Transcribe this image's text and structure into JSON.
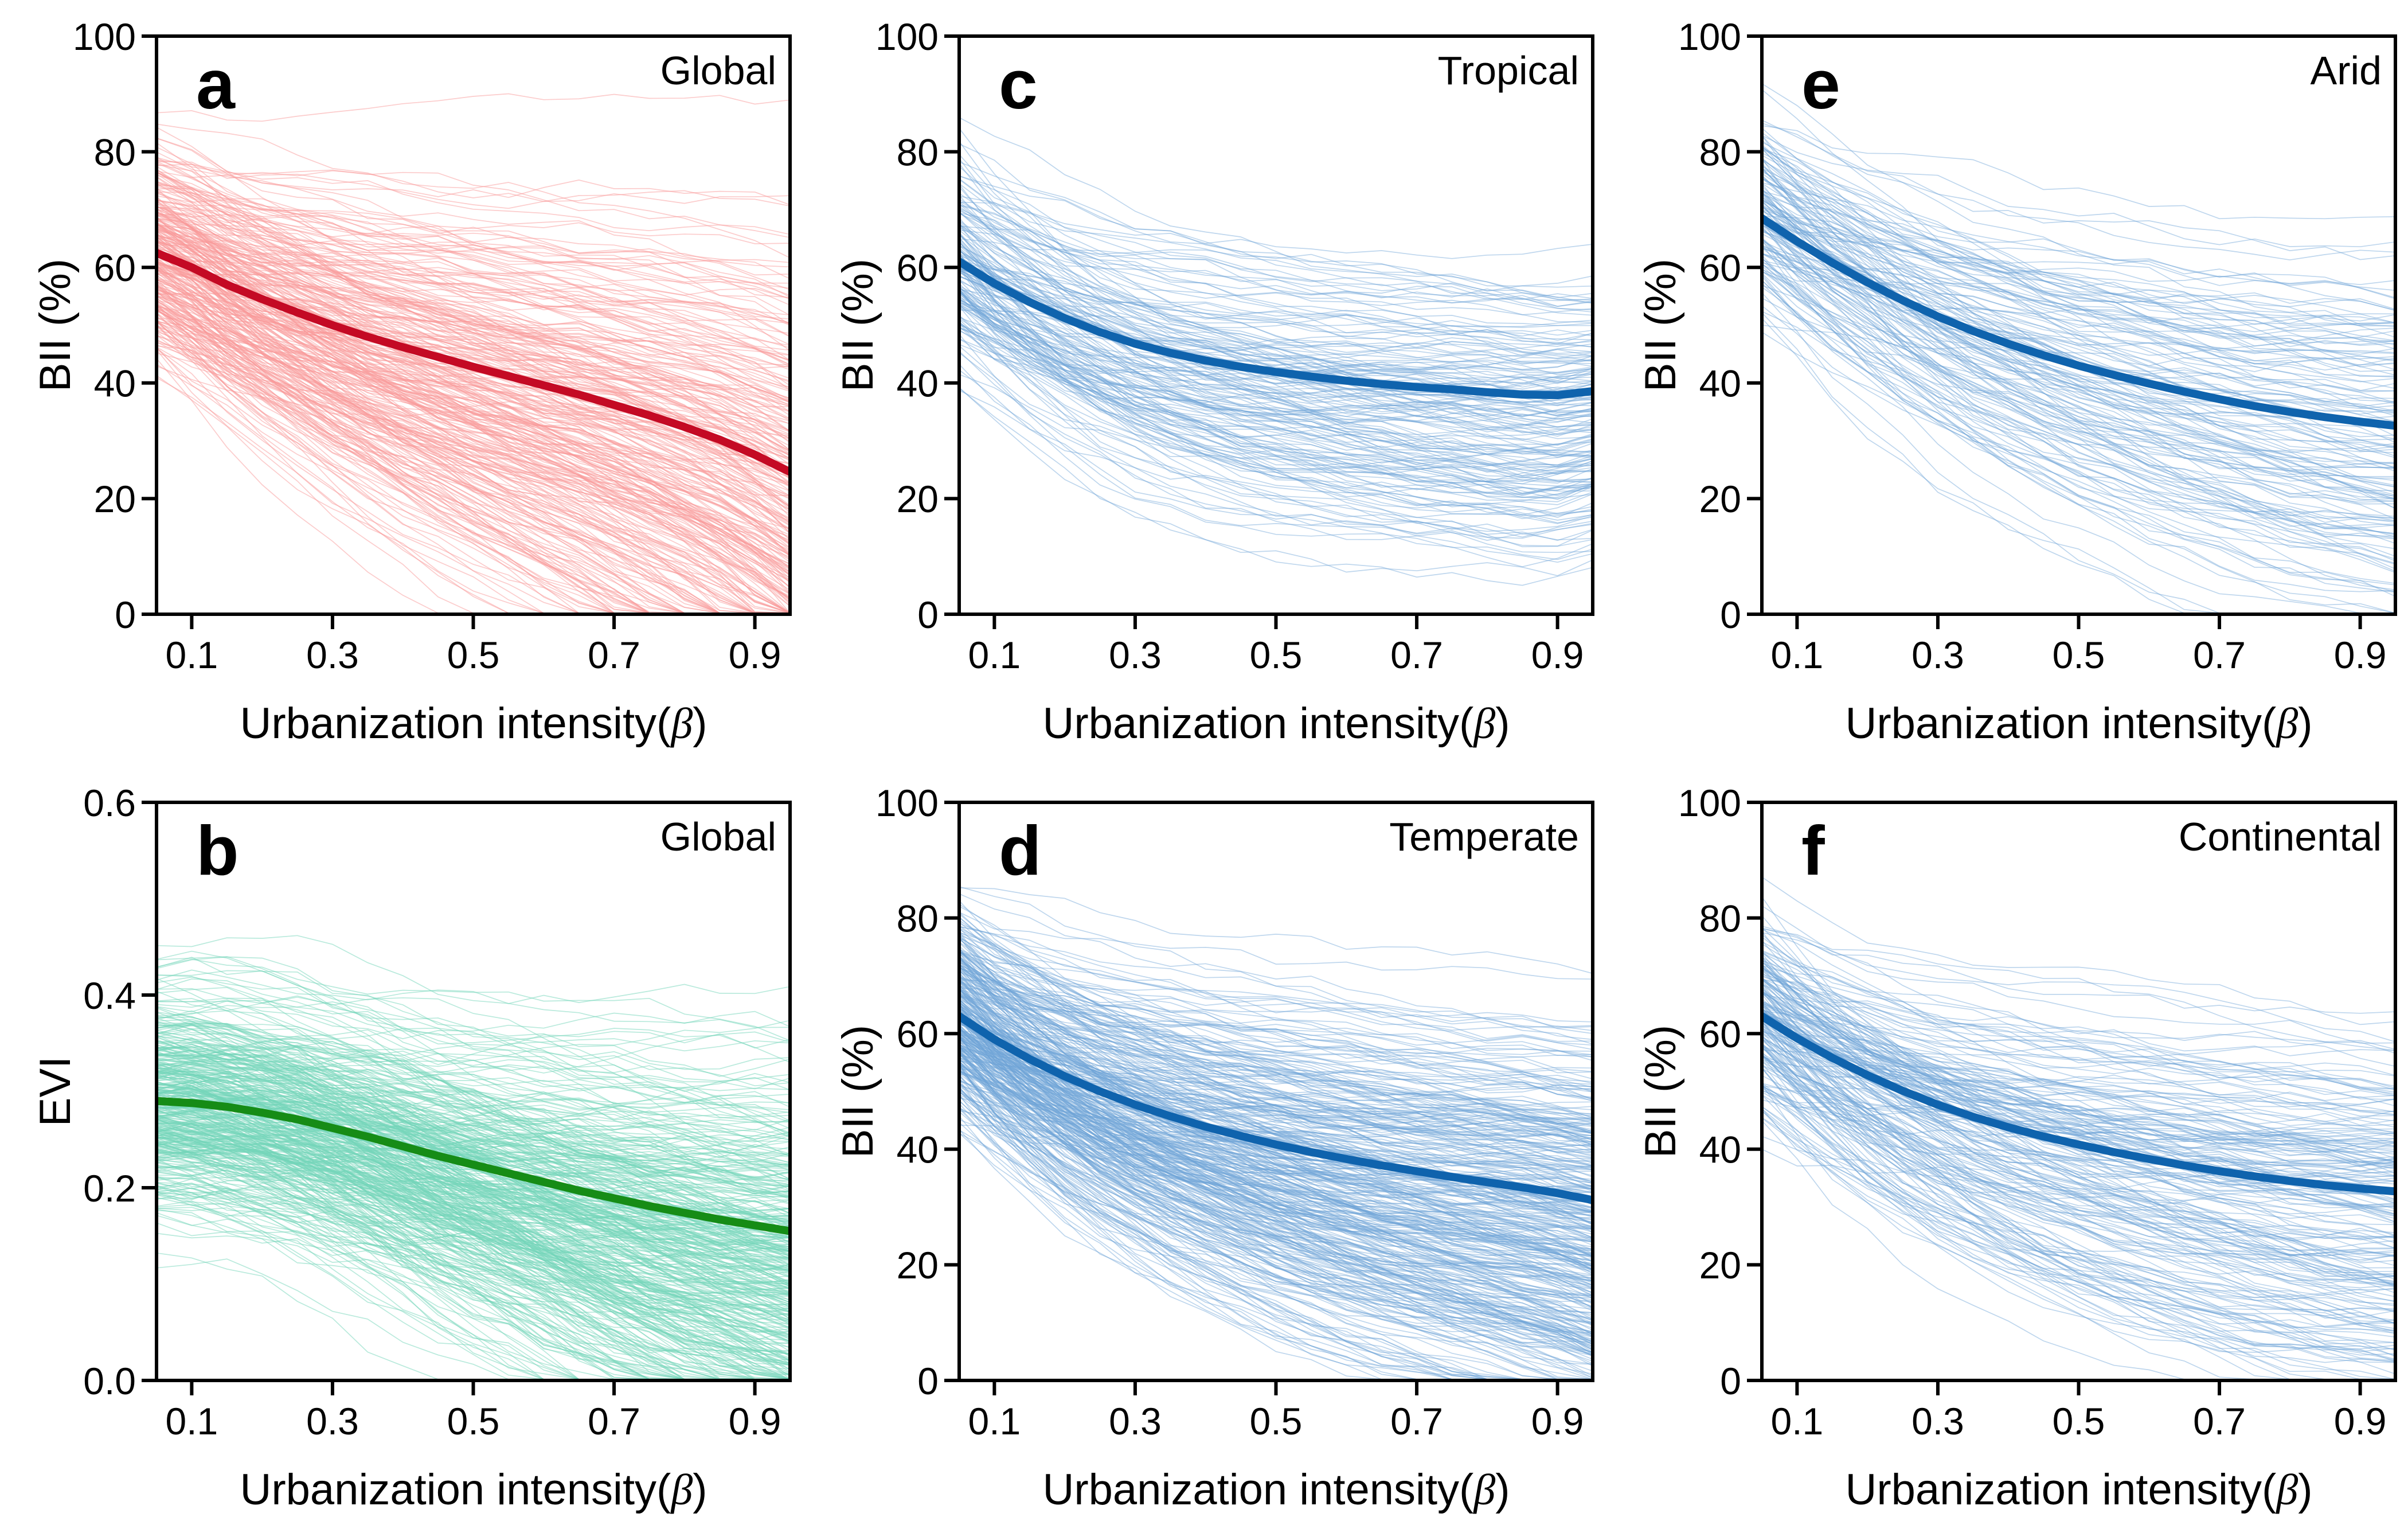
{
  "chart_data": [
    {
      "id": "a",
      "type": "line",
      "letter": "a",
      "region": "Global",
      "ylabel": "BII (%)",
      "xlabel_prefix": "Urbanization intensity(",
      "xlabel_beta": "β",
      "xlabel_suffix": ")",
      "xlim": [
        0.05,
        0.95
      ],
      "ylim": [
        0,
        100
      ],
      "xticks": [
        0.1,
        0.3,
        0.5,
        0.7,
        0.9
      ],
      "xtick_labels": [
        "0.1",
        "0.3",
        "0.5",
        "0.7",
        "0.9"
      ],
      "yticks": [
        0,
        20,
        40,
        60,
        80,
        100
      ],
      "ytick_labels": [
        "0",
        "20",
        "40",
        "60",
        "80",
        "100"
      ],
      "x": [
        0.05,
        0.1,
        0.15,
        0.2,
        0.25,
        0.3,
        0.35,
        0.4,
        0.45,
        0.5,
        0.55,
        0.6,
        0.65,
        0.7,
        0.75,
        0.8,
        0.85,
        0.9,
        0.95
      ],
      "mean": [
        62.5,
        60.0,
        57.0,
        54.5,
        52.2,
        50.0,
        48.0,
        46.2,
        44.5,
        42.8,
        41.2,
        39.6,
        38.0,
        36.2,
        34.4,
        32.4,
        30.2,
        27.6,
        24.6
      ],
      "colors": {
        "mean": "#c40a24",
        "ensemble": "#fa9a9a"
      },
      "ensemble": {
        "count": 330,
        "seed": 101,
        "spread_start": 13,
        "spread_end": 21,
        "noise": 2.0,
        "g_min": 0.35,
        "g_max": 2.1,
        "opacity": 0.5
      }
    },
    {
      "id": "b",
      "type": "line",
      "letter": "b",
      "region": "Global",
      "ylabel": "EVI",
      "xlabel_prefix": "Urbanization intensity(",
      "xlabel_beta": "β",
      "xlabel_suffix": ")",
      "xlim": [
        0.05,
        0.95
      ],
      "ylim": [
        0,
        0.6
      ],
      "xticks": [
        0.1,
        0.3,
        0.5,
        0.7,
        0.9
      ],
      "xtick_labels": [
        "0.1",
        "0.3",
        "0.5",
        "0.7",
        "0.9"
      ],
      "yticks": [
        0,
        0.2,
        0.4,
        0.6
      ],
      "ytick_labels": [
        "0.0",
        "0.2",
        "0.4",
        "0.6"
      ],
      "x": [
        0.05,
        0.1,
        0.15,
        0.2,
        0.25,
        0.3,
        0.35,
        0.4,
        0.45,
        0.5,
        0.55,
        0.6,
        0.65,
        0.7,
        0.75,
        0.8,
        0.85,
        0.9,
        0.95
      ],
      "mean": [
        0.29,
        0.288,
        0.284,
        0.278,
        0.271,
        0.262,
        0.253,
        0.243,
        0.233,
        0.224,
        0.215,
        0.206,
        0.197,
        0.189,
        0.181,
        0.174,
        0.167,
        0.161,
        0.155
      ],
      "colors": {
        "mean": "#168c16",
        "ensemble": "#74d6ba"
      },
      "ensemble": {
        "count": 430,
        "seed": 202,
        "spread_start": 0.082,
        "spread_end": 0.085,
        "noise": 0.016,
        "g_min": 0.2,
        "g_max": 2.6,
        "opacity": 0.5
      }
    },
    {
      "id": "c",
      "type": "line",
      "letter": "c",
      "region": "Tropical",
      "ylabel": "BII (%)",
      "xlabel_prefix": "Urbanization intensity(",
      "xlabel_beta": "β",
      "xlabel_suffix": ")",
      "xlim": [
        0.05,
        0.95
      ],
      "ylim": [
        0,
        100
      ],
      "xticks": [
        0.1,
        0.3,
        0.5,
        0.7,
        0.9
      ],
      "xtick_labels": [
        "0.1",
        "0.3",
        "0.5",
        "0.7",
        "0.9"
      ],
      "yticks": [
        0,
        20,
        40,
        60,
        80,
        100
      ],
      "ytick_labels": [
        "0",
        "20",
        "40",
        "60",
        "80",
        "100"
      ],
      "x": [
        0.05,
        0.1,
        0.15,
        0.2,
        0.25,
        0.3,
        0.35,
        0.4,
        0.45,
        0.5,
        0.55,
        0.6,
        0.65,
        0.7,
        0.75,
        0.8,
        0.85,
        0.9,
        0.95
      ],
      "mean": [
        61.0,
        57.2,
        54.0,
        51.2,
        48.8,
        46.8,
        45.2,
        43.9,
        42.8,
        41.9,
        41.1,
        40.4,
        39.8,
        39.3,
        38.9,
        38.4,
        38.0,
        37.9,
        38.6
      ],
      "colors": {
        "mean": "#0f63ad",
        "ensemble": "#6fa3d8"
      },
      "ensemble": {
        "count": 175,
        "seed": 303,
        "spread_start": 12,
        "spread_end": 8.5,
        "noise": 1.9,
        "g_min": 0.35,
        "g_max": 1.9,
        "opacity": 0.45
      }
    },
    {
      "id": "d",
      "type": "line",
      "letter": "d",
      "region": "Temperate",
      "ylabel": "BII (%)",
      "xlabel_prefix": "Urbanization intensity(",
      "xlabel_beta": "β",
      "xlabel_suffix": ")",
      "xlim": [
        0.05,
        0.95
      ],
      "ylim": [
        0,
        100
      ],
      "xticks": [
        0.1,
        0.3,
        0.5,
        0.7,
        0.9
      ],
      "xtick_labels": [
        "0.1",
        "0.3",
        "0.5",
        "0.7",
        "0.9"
      ],
      "yticks": [
        0,
        20,
        40,
        60,
        80,
        100
      ],
      "ytick_labels": [
        "0",
        "20",
        "40",
        "60",
        "80",
        "100"
      ],
      "x": [
        0.05,
        0.1,
        0.15,
        0.2,
        0.25,
        0.3,
        0.35,
        0.4,
        0.45,
        0.5,
        0.55,
        0.6,
        0.65,
        0.7,
        0.75,
        0.8,
        0.85,
        0.9,
        0.95
      ],
      "mean": [
        63.0,
        59.0,
        55.6,
        52.6,
        50.0,
        47.7,
        45.7,
        43.9,
        42.3,
        40.8,
        39.5,
        38.3,
        37.2,
        36.2,
        35.2,
        34.3,
        33.4,
        32.4,
        31.2
      ],
      "colors": {
        "mean": "#0f63ad",
        "ensemble": "#6fa3d8"
      },
      "ensemble": {
        "count": 400,
        "seed": 404,
        "spread_start": 12,
        "spread_end": 10,
        "noise": 1.9,
        "g_min": 0.35,
        "g_max": 2.0,
        "opacity": 0.45
      }
    },
    {
      "id": "e",
      "type": "line",
      "letter": "e",
      "region": "Arid",
      "ylabel": "BII (%)",
      "xlabel_prefix": "Urbanization intensity(",
      "xlabel_beta": "β",
      "xlabel_suffix": ")",
      "xlim": [
        0.05,
        0.95
      ],
      "ylim": [
        0,
        100
      ],
      "xticks": [
        0.1,
        0.3,
        0.5,
        0.7,
        0.9
      ],
      "xtick_labels": [
        "0.1",
        "0.3",
        "0.5",
        "0.7",
        "0.9"
      ],
      "yticks": [
        0,
        20,
        40,
        60,
        80,
        100
      ],
      "ytick_labels": [
        "0",
        "20",
        "40",
        "60",
        "80",
        "100"
      ],
      "x": [
        0.05,
        0.1,
        0.15,
        0.2,
        0.25,
        0.3,
        0.35,
        0.4,
        0.45,
        0.5,
        0.55,
        0.6,
        0.65,
        0.7,
        0.75,
        0.8,
        0.85,
        0.9,
        0.95
      ],
      "mean": [
        68.5,
        64.5,
        60.8,
        57.4,
        54.3,
        51.5,
        49.0,
        46.8,
        44.8,
        43.0,
        41.4,
        39.9,
        38.5,
        37.2,
        36.0,
        35.0,
        34.1,
        33.3,
        32.6
      ],
      "colors": {
        "mean": "#0f63ad",
        "ensemble": "#6fa3d8"
      },
      "ensemble": {
        "count": 150,
        "seed": 505,
        "spread_start": 11,
        "spread_end": 9,
        "noise": 2.0,
        "g_min": 0.35,
        "g_max": 1.9,
        "opacity": 0.45
      }
    },
    {
      "id": "f",
      "type": "line",
      "letter": "f",
      "region": "Continental",
      "ylabel": "BII (%)",
      "xlabel_prefix": "Urbanization intensity(",
      "xlabel_beta": "β",
      "xlabel_suffix": ")",
      "xlim": [
        0.05,
        0.95
      ],
      "ylim": [
        0,
        100
      ],
      "xticks": [
        0.1,
        0.3,
        0.5,
        0.7,
        0.9
      ],
      "xtick_labels": [
        "0.1",
        "0.3",
        "0.5",
        "0.7",
        "0.9"
      ],
      "yticks": [
        0,
        20,
        40,
        60,
        80,
        100
      ],
      "ytick_labels": [
        "0",
        "20",
        "40",
        "60",
        "80",
        "100"
      ],
      "x": [
        0.05,
        0.1,
        0.15,
        0.2,
        0.25,
        0.3,
        0.35,
        0.4,
        0.45,
        0.5,
        0.55,
        0.6,
        0.65,
        0.7,
        0.75,
        0.8,
        0.85,
        0.9,
        0.95
      ],
      "mean": [
        63.0,
        59.2,
        55.8,
        52.8,
        50.1,
        47.7,
        45.6,
        43.8,
        42.2,
        40.8,
        39.5,
        38.3,
        37.2,
        36.2,
        35.3,
        34.5,
        33.8,
        33.2,
        32.7
      ],
      "colors": {
        "mean": "#0f63ad",
        "ensemble": "#6fa3d8"
      },
      "ensemble": {
        "count": 210,
        "seed": 606,
        "spread_start": 12,
        "spread_end": 9,
        "noise": 2.0,
        "g_min": 0.35,
        "g_max": 2.0,
        "opacity": 0.45
      }
    }
  ]
}
